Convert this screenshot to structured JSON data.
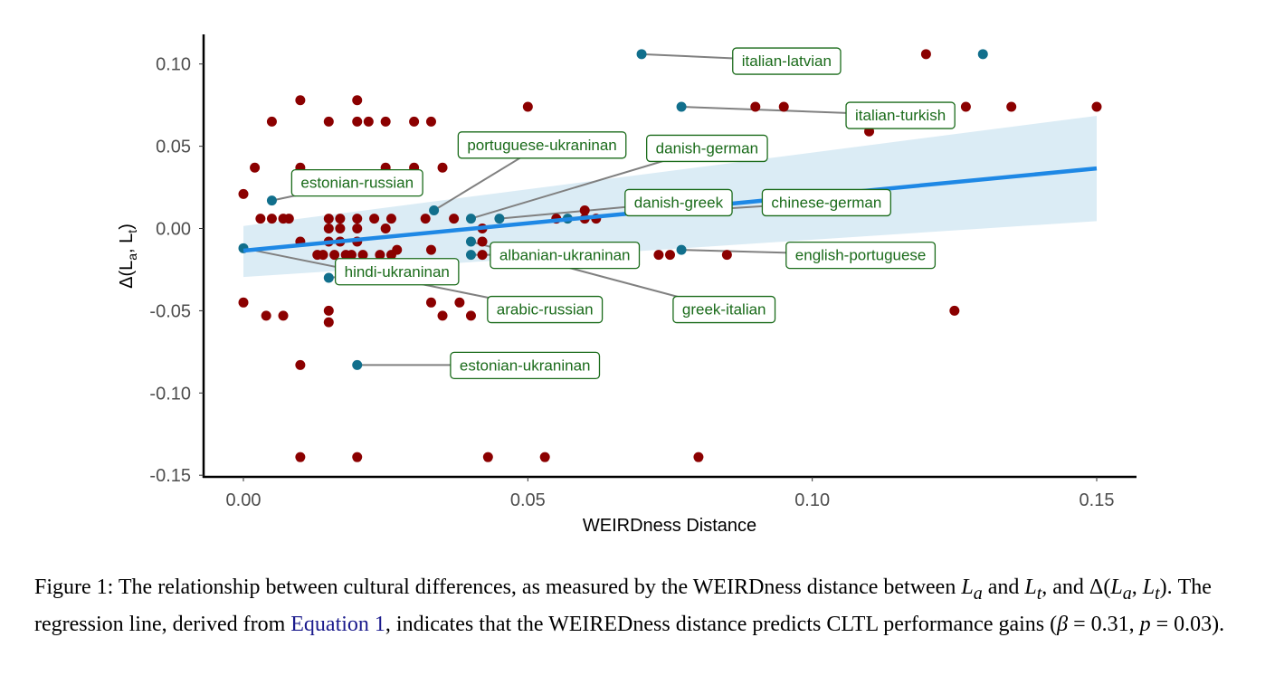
{
  "chart_data": {
    "type": "scatter",
    "xlabel": "WEIRDness Distance",
    "ylabel_main": "Δ(L",
    "ylabel_sub_a": "a",
    "ylabel_mid": ", L",
    "ylabel_sub_t": "t",
    "ylabel_end": ")",
    "xlim": [
      -0.007,
      0.157
    ],
    "ylim": [
      -0.151,
      0.118
    ],
    "x_ticks": [
      0.0,
      0.05,
      0.1,
      0.15
    ],
    "x_tick_labels": [
      "0.00",
      "0.05",
      "0.10",
      "0.15"
    ],
    "y_ticks": [
      0.1,
      0.05,
      0.0,
      -0.05,
      -0.1,
      -0.15
    ],
    "y_tick_labels": [
      "0.10",
      "0.05",
      "0.00",
      "-0.05",
      "-0.10",
      "-0.15"
    ],
    "grid": false,
    "colors": {
      "other_points": "#8b0000",
      "highlighted_points": "#116f8c",
      "regression_line": "#1e88e5",
      "confidence_band": "#cfe6f2",
      "annotation_text": "#1a6b1a",
      "annotation_border": "#1a6b1a",
      "leader_line": "#808080"
    },
    "regression": {
      "x": [
        0.0,
        0.15
      ],
      "y": [
        -0.0135,
        0.0365
      ],
      "band_lower": [
        -0.0295,
        0.0045
      ],
      "band_upper": [
        0.0015,
        0.0685
      ]
    },
    "other_points": [
      [
        0.0,
        0.021
      ],
      [
        0.0,
        -0.045
      ],
      [
        0.002,
        0.037
      ],
      [
        0.003,
        0.006
      ],
      [
        0.004,
        -0.053
      ],
      [
        0.005,
        0.065
      ],
      [
        0.005,
        0.006
      ],
      [
        0.007,
        -0.053
      ],
      [
        0.007,
        0.006
      ],
      [
        0.008,
        0.006
      ],
      [
        0.01,
        0.078
      ],
      [
        0.01,
        0.037
      ],
      [
        0.01,
        -0.008
      ],
      [
        0.01,
        -0.083
      ],
      [
        0.01,
        -0.139
      ],
      [
        0.013,
        -0.016
      ],
      [
        0.014,
        -0.016
      ],
      [
        0.015,
        0.065
      ],
      [
        0.015,
        0.006
      ],
      [
        0.015,
        0.0
      ],
      [
        0.015,
        -0.008
      ],
      [
        0.015,
        -0.05
      ],
      [
        0.015,
        -0.057
      ],
      [
        0.016,
        -0.016
      ],
      [
        0.017,
        0.006
      ],
      [
        0.017,
        0.0
      ],
      [
        0.017,
        -0.008
      ],
      [
        0.018,
        -0.016
      ],
      [
        0.019,
        -0.016
      ],
      [
        0.02,
        0.078
      ],
      [
        0.02,
        0.065
      ],
      [
        0.02,
        0.006
      ],
      [
        0.02,
        0.0
      ],
      [
        0.02,
        -0.008
      ],
      [
        0.02,
        -0.139
      ],
      [
        0.021,
        -0.016
      ],
      [
        0.022,
        0.065
      ],
      [
        0.023,
        0.006
      ],
      [
        0.024,
        -0.016
      ],
      [
        0.025,
        0.065
      ],
      [
        0.025,
        0.037
      ],
      [
        0.025,
        0.0
      ],
      [
        0.026,
        0.006
      ],
      [
        0.026,
        -0.016
      ],
      [
        0.027,
        -0.013
      ],
      [
        0.03,
        0.065
      ],
      [
        0.03,
        0.037
      ],
      [
        0.032,
        0.006
      ],
      [
        0.033,
        0.065
      ],
      [
        0.033,
        -0.013
      ],
      [
        0.033,
        -0.045
      ],
      [
        0.035,
        0.037
      ],
      [
        0.035,
        -0.053
      ],
      [
        0.037,
        0.006
      ],
      [
        0.038,
        -0.045
      ],
      [
        0.04,
        -0.053
      ],
      [
        0.042,
        0.0
      ],
      [
        0.042,
        -0.008
      ],
      [
        0.042,
        -0.016
      ],
      [
        0.043,
        -0.139
      ],
      [
        0.05,
        0.074
      ],
      [
        0.053,
        -0.139
      ],
      [
        0.055,
        0.006
      ],
      [
        0.06,
        0.011
      ],
      [
        0.06,
        0.006
      ],
      [
        0.062,
        0.006
      ],
      [
        0.073,
        -0.016
      ],
      [
        0.075,
        -0.016
      ],
      [
        0.08,
        -0.139
      ],
      [
        0.085,
        -0.016
      ],
      [
        0.09,
        0.074
      ],
      [
        0.095,
        0.074
      ],
      [
        0.11,
        0.059
      ],
      [
        0.12,
        0.106
      ],
      [
        0.125,
        -0.05
      ],
      [
        0.127,
        0.074
      ],
      [
        0.135,
        0.074
      ],
      [
        0.15,
        0.074
      ]
    ],
    "highlighted_points": [
      {
        "x": 0.0,
        "y": -0.012,
        "label": "arabic-russian"
      },
      {
        "x": 0.005,
        "y": 0.017,
        "label": "estonian-russian"
      },
      {
        "x": 0.015,
        "y": -0.03,
        "label": "hindi-ukraninan"
      },
      {
        "x": 0.02,
        "y": -0.083,
        "label": "estonian-ukraninan"
      },
      {
        "x": 0.0335,
        "y": 0.011,
        "label": "portuguese-ukraninan"
      },
      {
        "x": 0.04,
        "y": 0.006,
        "label": "danish-german"
      },
      {
        "x": 0.04,
        "y": -0.008,
        "label": "greek-italian"
      },
      {
        "x": 0.04,
        "y": -0.016,
        "label": "albanian-ukraninan"
      },
      {
        "x": 0.045,
        "y": 0.006,
        "label": "danish-greek"
      },
      {
        "x": 0.057,
        "y": 0.006,
        "label": "chinese-german"
      },
      {
        "x": 0.07,
        "y": 0.106,
        "label": "italian-latvian"
      },
      {
        "x": 0.077,
        "y": 0.074,
        "label": "italian-turkish"
      },
      {
        "x": 0.077,
        "y": -0.013,
        "label": "english-portuguese"
      },
      {
        "x": 0.13,
        "y": 0.106,
        "label": "italian-latvian"
      }
    ],
    "annotations": [
      {
        "label": "italian-latvian",
        "x": 0.0955,
        "y": 0.102,
        "target": [
          0.07,
          0.106
        ]
      },
      {
        "label": "italian-turkish",
        "x": 0.1155,
        "y": 0.069,
        "target": [
          0.077,
          0.074
        ]
      },
      {
        "label": "portuguese-ukraninan",
        "x": 0.0525,
        "y": 0.051,
        "target": [
          0.0335,
          0.011
        ]
      },
      {
        "label": "danish-german",
        "x": 0.0815,
        "y": 0.049,
        "target": [
          0.04,
          0.006
        ]
      },
      {
        "label": "estonian-russian",
        "x": 0.02,
        "y": 0.028,
        "target": [
          0.005,
          0.017
        ]
      },
      {
        "label": "danish-greek",
        "x": 0.0765,
        "y": 0.016,
        "target": [
          0.045,
          0.006
        ]
      },
      {
        "label": "chinese-german",
        "x": 0.1025,
        "y": 0.016,
        "target": [
          0.057,
          0.006
        ]
      },
      {
        "label": "albanian-ukraninan",
        "x": 0.0565,
        "y": -0.016,
        "target": [
          0.04,
          -0.016
        ]
      },
      {
        "label": "english-portuguese",
        "x": 0.1085,
        "y": -0.016,
        "target": [
          0.077,
          -0.013
        ]
      },
      {
        "label": "hindi-ukraninan",
        "x": 0.027,
        "y": -0.026,
        "target": [
          0.015,
          -0.03
        ]
      },
      {
        "label": "arabic-russian",
        "x": 0.053,
        "y": -0.049,
        "target": [
          0.0,
          -0.012
        ]
      },
      {
        "label": "greek-italian",
        "x": 0.0845,
        "y": -0.049,
        "target": [
          0.04,
          -0.008
        ]
      },
      {
        "label": "estonian-ukraninan",
        "x": 0.0495,
        "y": -0.083,
        "target": [
          0.02,
          -0.083
        ]
      }
    ]
  },
  "caption": {
    "prefix": "Figure 1: The relationship between cultural differences, as measured by the WEIRDness distance between ",
    "la": "L",
    "la_sub": "a",
    "mid1": " and ",
    "lt": "L",
    "lt_sub": "t",
    "mid2": ", and Δ(",
    "la2": "L",
    "la2_sub": "a",
    "comma": ", ",
    "lt2": "L",
    "lt2_sub": "t",
    "mid3": "). The regression line, derived from ",
    "ref": "Equation 1",
    "mid4": ", indicates that the WEIREDness distance predicts CLTL performance gains (",
    "beta": "β",
    "beta_val": " = 0.31, ",
    "p": "p",
    "p_val": " = 0.03)."
  }
}
